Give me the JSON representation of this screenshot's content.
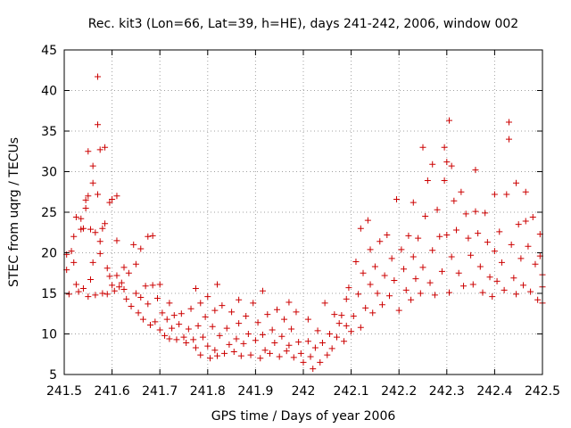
{
  "chart_data": {
    "type": "scatter",
    "title": "Rec. kit3 (Lon=66, Lat=39, h=HE), days 241-242, 2006, window 002",
    "xlabel": "GPS time / Days of year 2006",
    "ylabel": "STEC from uqrg / TECUs",
    "xlim": [
      241.5,
      242.5
    ],
    "ylim": [
      5,
      45
    ],
    "xticks": [
      "241.5",
      "241.6",
      "241.7",
      "241.8",
      "241.9",
      "242",
      "242.1",
      "242.2",
      "242.3",
      "242.4",
      "242.5"
    ],
    "yticks": [
      "5",
      "10",
      "15",
      "20",
      "25",
      "30",
      "35",
      "40",
      "45"
    ],
    "grid": true,
    "marker": "+",
    "color": "#cc0000",
    "series": [
      {
        "name": "",
        "points": [
          [
            241.505,
            17.9
          ],
          [
            241.505,
            19.8
          ],
          [
            241.51,
            14.9
          ],
          [
            241.515,
            20.2
          ],
          [
            241.52,
            22.0
          ],
          [
            241.52,
            18.8
          ],
          [
            241.525,
            24.4
          ],
          [
            241.525,
            16.1
          ],
          [
            241.53,
            15.2
          ],
          [
            241.535,
            24.2
          ],
          [
            241.535,
            22.9
          ],
          [
            241.54,
            23.0
          ],
          [
            241.54,
            15.6
          ],
          [
            241.545,
            26.5
          ],
          [
            241.545,
            25.5
          ],
          [
            241.55,
            32.5
          ],
          [
            241.55,
            27.0
          ],
          [
            241.55,
            14.6
          ],
          [
            241.555,
            22.9
          ],
          [
            241.555,
            16.7
          ],
          [
            241.56,
            30.7
          ],
          [
            241.56,
            28.6
          ],
          [
            241.56,
            18.8
          ],
          [
            241.565,
            22.5
          ],
          [
            241.565,
            14.8
          ],
          [
            241.57,
            41.7
          ],
          [
            241.57,
            35.8
          ],
          [
            241.57,
            27.2
          ],
          [
            241.575,
            32.7
          ],
          [
            241.575,
            21.4
          ],
          [
            241.575,
            19.9
          ],
          [
            241.58,
            23.0
          ],
          [
            241.58,
            15.0
          ],
          [
            241.585,
            33.0
          ],
          [
            241.585,
            23.6
          ],
          [
            241.59,
            18.1
          ],
          [
            241.59,
            14.9
          ],
          [
            241.595,
            26.2
          ],
          [
            241.595,
            17.1
          ],
          [
            241.6,
            26.6
          ],
          [
            241.6,
            16.0
          ],
          [
            241.605,
            15.3
          ],
          [
            241.61,
            27.0
          ],
          [
            241.61,
            21.5
          ],
          [
            241.61,
            17.2
          ],
          [
            241.615,
            15.8
          ],
          [
            241.62,
            16.3
          ],
          [
            241.625,
            18.2
          ],
          [
            241.625,
            15.5
          ],
          [
            241.63,
            14.3
          ],
          [
            241.635,
            17.5
          ],
          [
            241.64,
            13.4
          ],
          [
            241.645,
            21.0
          ],
          [
            241.65,
            18.6
          ],
          [
            241.65,
            15.0
          ],
          [
            241.655,
            12.6
          ],
          [
            241.66,
            20.5
          ],
          [
            241.66,
            14.5
          ],
          [
            241.665,
            11.8
          ],
          [
            241.67,
            15.9
          ],
          [
            241.675,
            22.0
          ],
          [
            241.675,
            13.7
          ],
          [
            241.68,
            11.1
          ],
          [
            241.685,
            22.1
          ],
          [
            241.685,
            16.0
          ],
          [
            241.69,
            11.5
          ],
          [
            241.695,
            14.4
          ],
          [
            241.7,
            10.5
          ],
          [
            241.7,
            16.1
          ],
          [
            241.705,
            12.6
          ],
          [
            241.71,
            9.8
          ],
          [
            241.715,
            11.8
          ],
          [
            241.72,
            13.8
          ],
          [
            241.72,
            9.4
          ],
          [
            241.725,
            10.7
          ],
          [
            241.73,
            12.3
          ],
          [
            241.735,
            9.3
          ],
          [
            241.74,
            11.2
          ],
          [
            241.745,
            12.5
          ],
          [
            241.75,
            9.6
          ],
          [
            241.755,
            8.9
          ],
          [
            241.76,
            10.6
          ],
          [
            241.765,
            13.1
          ],
          [
            241.77,
            9.3
          ],
          [
            241.775,
            15.6
          ],
          [
            241.775,
            8.3
          ],
          [
            241.78,
            11.0
          ],
          [
            241.785,
            13.8
          ],
          [
            241.785,
            7.4
          ],
          [
            241.79,
            9.6
          ],
          [
            241.795,
            12.1
          ],
          [
            241.8,
            14.6
          ],
          [
            241.8,
            8.5
          ],
          [
            241.805,
            7.0
          ],
          [
            241.81,
            10.9
          ],
          [
            241.815,
            12.9
          ],
          [
            241.815,
            8.0
          ],
          [
            241.82,
            16.1
          ],
          [
            241.82,
            7.3
          ],
          [
            241.825,
            9.8
          ],
          [
            241.83,
            13.5
          ],
          [
            241.835,
            7.6
          ],
          [
            241.84,
            10.7
          ],
          [
            241.845,
            8.7
          ],
          [
            241.85,
            12.7
          ],
          [
            241.855,
            7.8
          ],
          [
            241.86,
            9.4
          ],
          [
            241.865,
            14.2
          ],
          [
            241.865,
            11.3
          ],
          [
            241.87,
            7.3
          ],
          [
            241.875,
            8.8
          ],
          [
            241.88,
            12.2
          ],
          [
            241.885,
            10.0
          ],
          [
            241.89,
            7.4
          ],
          [
            241.895,
            13.8
          ],
          [
            241.9,
            9.2
          ],
          [
            241.905,
            11.4
          ],
          [
            241.91,
            7.0
          ],
          [
            241.915,
            15.3
          ],
          [
            241.915,
            9.9
          ],
          [
            241.92,
            8.0
          ],
          [
            241.925,
            12.4
          ],
          [
            241.93,
            7.6
          ],
          [
            241.935,
            10.5
          ],
          [
            241.94,
            8.9
          ],
          [
            241.945,
            13.0
          ],
          [
            241.95,
            7.2
          ],
          [
            241.955,
            9.7
          ],
          [
            241.96,
            11.8
          ],
          [
            241.965,
            7.9
          ],
          [
            241.97,
            13.9
          ],
          [
            241.97,
            8.6
          ],
          [
            241.975,
            10.6
          ],
          [
            241.98,
            7.1
          ],
          [
            241.985,
            12.7
          ],
          [
            241.99,
            9.0
          ],
          [
            241.995,
            7.6
          ],
          [
            242.0,
            6.5
          ],
          [
            242.01,
            11.8
          ],
          [
            242.01,
            9.1
          ],
          [
            242.015,
            7.2
          ],
          [
            242.02,
            5.7
          ],
          [
            242.025,
            8.3
          ],
          [
            242.03,
            10.4
          ],
          [
            242.035,
            6.5
          ],
          [
            242.04,
            8.9
          ],
          [
            242.045,
            13.8
          ],
          [
            242.05,
            7.4
          ],
          [
            242.055,
            10.0
          ],
          [
            242.06,
            8.2
          ],
          [
            242.065,
            12.4
          ],
          [
            242.07,
            9.6
          ],
          [
            242.075,
            11.3
          ],
          [
            242.08,
            12.3
          ],
          [
            242.085,
            9.1
          ],
          [
            242.09,
            14.3
          ],
          [
            242.09,
            11.0
          ],
          [
            242.095,
            15.7
          ],
          [
            242.1,
            10.3
          ],
          [
            242.105,
            12.2
          ],
          [
            242.11,
            18.9
          ],
          [
            242.115,
            14.9
          ],
          [
            242.12,
            23.0
          ],
          [
            242.12,
            10.8
          ],
          [
            242.125,
            17.5
          ],
          [
            242.13,
            13.2
          ],
          [
            242.135,
            24.0
          ],
          [
            242.14,
            16.1
          ],
          [
            242.14,
            20.4
          ],
          [
            242.145,
            12.6
          ],
          [
            242.15,
            18.3
          ],
          [
            242.155,
            15.0
          ],
          [
            242.16,
            21.4
          ],
          [
            242.165,
            13.6
          ],
          [
            242.17,
            17.2
          ],
          [
            242.175,
            22.2
          ],
          [
            242.18,
            14.7
          ],
          [
            242.185,
            19.3
          ],
          [
            242.19,
            16.6
          ],
          [
            242.195,
            26.6
          ],
          [
            242.2,
            12.9
          ],
          [
            242.205,
            20.4
          ],
          [
            242.21,
            18.0
          ],
          [
            242.215,
            15.4
          ],
          [
            242.22,
            22.1
          ],
          [
            242.225,
            14.2
          ],
          [
            242.23,
            26.2
          ],
          [
            242.23,
            19.5
          ],
          [
            242.235,
            16.8
          ],
          [
            242.24,
            21.8
          ],
          [
            242.245,
            15.0
          ],
          [
            242.25,
            33.0
          ],
          [
            242.25,
            18.2
          ],
          [
            242.255,
            24.5
          ],
          [
            242.26,
            28.9
          ],
          [
            242.265,
            16.3
          ],
          [
            242.27,
            30.9
          ],
          [
            242.27,
            20.3
          ],
          [
            242.275,
            14.8
          ],
          [
            242.28,
            25.3
          ],
          [
            242.285,
            22.0
          ],
          [
            242.29,
            17.7
          ],
          [
            242.295,
            33.0
          ],
          [
            242.295,
            28.9
          ],
          [
            242.3,
            31.2
          ],
          [
            242.3,
            22.2
          ],
          [
            242.305,
            36.3
          ],
          [
            242.305,
            15.1
          ],
          [
            242.31,
            30.7
          ],
          [
            242.31,
            19.5
          ],
          [
            242.315,
            26.4
          ],
          [
            242.32,
            22.8
          ],
          [
            242.325,
            17.5
          ],
          [
            242.33,
            27.5
          ],
          [
            242.335,
            15.9
          ],
          [
            242.34,
            24.8
          ],
          [
            242.345,
            21.8
          ],
          [
            242.35,
            19.7
          ],
          [
            242.355,
            16.1
          ],
          [
            242.36,
            30.2
          ],
          [
            242.36,
            25.1
          ],
          [
            242.365,
            22.4
          ],
          [
            242.37,
            18.3
          ],
          [
            242.375,
            15.1
          ],
          [
            242.38,
            24.9
          ],
          [
            242.385,
            21.3
          ],
          [
            242.39,
            17.0
          ],
          [
            242.395,
            14.6
          ],
          [
            242.4,
            27.2
          ],
          [
            242.4,
            20.2
          ],
          [
            242.405,
            16.5
          ],
          [
            242.41,
            22.6
          ],
          [
            242.415,
            18.8
          ],
          [
            242.42,
            15.4
          ],
          [
            242.425,
            27.2
          ],
          [
            242.43,
            36.1
          ],
          [
            242.43,
            34.0
          ],
          [
            242.435,
            21.0
          ],
          [
            242.44,
            16.9
          ],
          [
            242.445,
            28.6
          ],
          [
            242.445,
            14.9
          ],
          [
            242.45,
            23.5
          ],
          [
            242.455,
            19.3
          ],
          [
            242.46,
            16.0
          ],
          [
            242.465,
            27.5
          ],
          [
            242.465,
            23.9
          ],
          [
            242.47,
            20.8
          ],
          [
            242.475,
            15.2
          ],
          [
            242.48,
            24.4
          ],
          [
            242.485,
            18.6
          ],
          [
            242.49,
            14.2
          ],
          [
            242.495,
            22.3
          ],
          [
            242.495,
            19.6
          ],
          [
            242.5,
            17.3
          ],
          [
            242.5,
            13.8
          ],
          [
            242.5,
            15.8
          ]
        ]
      }
    ]
  }
}
